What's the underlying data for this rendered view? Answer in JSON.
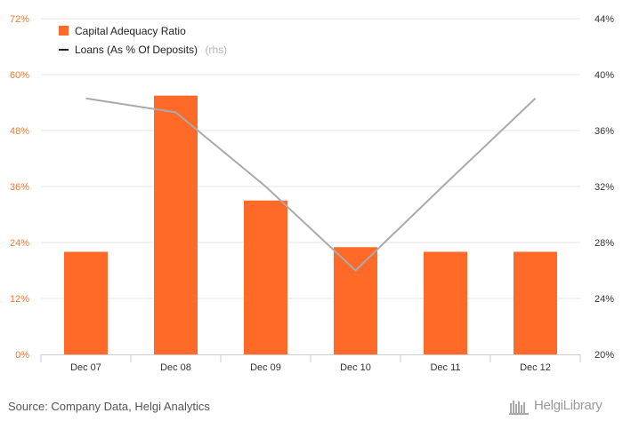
{
  "chart_data": {
    "type": "bar",
    "categories": [
      "Dec 07",
      "Dec 08",
      "Dec 09",
      "Dec 10",
      "Dec 11",
      "Dec 12"
    ],
    "series": [
      {
        "name": "Capital Adequacy Ratio",
        "type": "bar",
        "axis": "left",
        "color": "#ff6a28",
        "values": [
          22.0,
          55.5,
          33.0,
          23.0,
          22.0,
          22.0
        ]
      },
      {
        "name": "Loans (As % Of Deposits)",
        "legend_suffix": "(rhs)",
        "type": "line",
        "axis": "right",
        "color": "#aaaaaa",
        "values": [
          38.3,
          37.3,
          32.0,
          26.0,
          32.2,
          38.3
        ]
      }
    ],
    "y_left": {
      "min": 0,
      "max": 72,
      "ticks": [
        0,
        12,
        24,
        36,
        48,
        60,
        72
      ],
      "suffix": "%"
    },
    "y_right": {
      "min": 20,
      "max": 44,
      "ticks": [
        20,
        24,
        28,
        32,
        36,
        40,
        44
      ],
      "suffix": "%"
    },
    "grid": true,
    "legend_position": "top-left"
  },
  "footer": {
    "source": "Source: Company Data, Helgi Analytics",
    "brand": "HelgiLibrary"
  }
}
